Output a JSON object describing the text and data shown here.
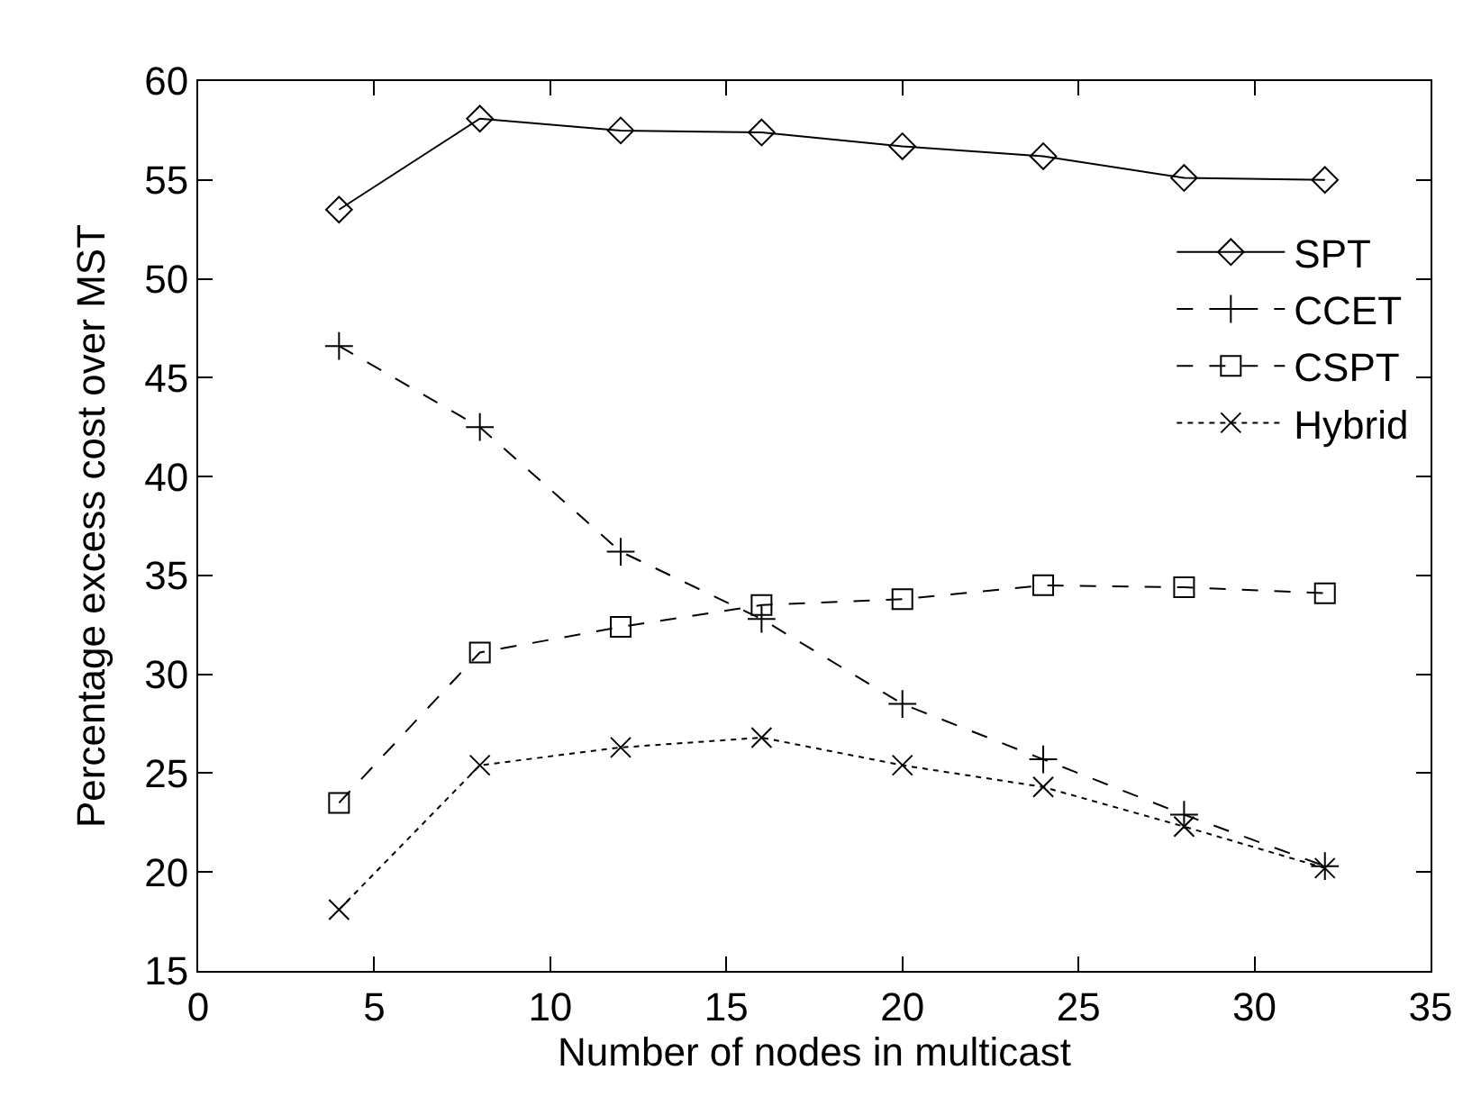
{
  "chart_data": {
    "type": "line",
    "xlabel": "Number of nodes in multicast",
    "ylabel": "Percentage excess cost over MST",
    "x": [
      4,
      8,
      12,
      16,
      20,
      24,
      28,
      32
    ],
    "xlim": [
      0,
      35
    ],
    "xticks": [
      0,
      5,
      10,
      15,
      20,
      25,
      30,
      35
    ],
    "ylim": [
      15,
      60
    ],
    "yticks": [
      15,
      20,
      25,
      30,
      35,
      40,
      45,
      50,
      55,
      60
    ],
    "legend": "top right",
    "series": [
      {
        "name": "SPT",
        "color": "#000000",
        "marker": "diamond",
        "line_style": "solid",
        "values": [
          53.5,
          58.1,
          57.5,
          57.4,
          56.7,
          56.2,
          55.1,
          55.0
        ]
      },
      {
        "name": "CCET",
        "color": "#000000",
        "marker": "cross",
        "line_style": "dashed",
        "values": [
          46.6,
          42.5,
          36.2,
          32.8,
          28.5,
          25.7,
          22.9,
          20.3
        ]
      },
      {
        "name": "CSPT",
        "color": "#000000",
        "marker": "square",
        "line_style": "dashed",
        "values": [
          23.5,
          31.1,
          32.4,
          33.5,
          33.8,
          34.5,
          34.4,
          34.1
        ]
      },
      {
        "name": "Hybrid",
        "color": "#000000",
        "marker": "x",
        "line_style": "dotted",
        "values": [
          18.1,
          25.4,
          26.3,
          26.8,
          25.4,
          24.3,
          22.3,
          20.2
        ]
      }
    ]
  }
}
